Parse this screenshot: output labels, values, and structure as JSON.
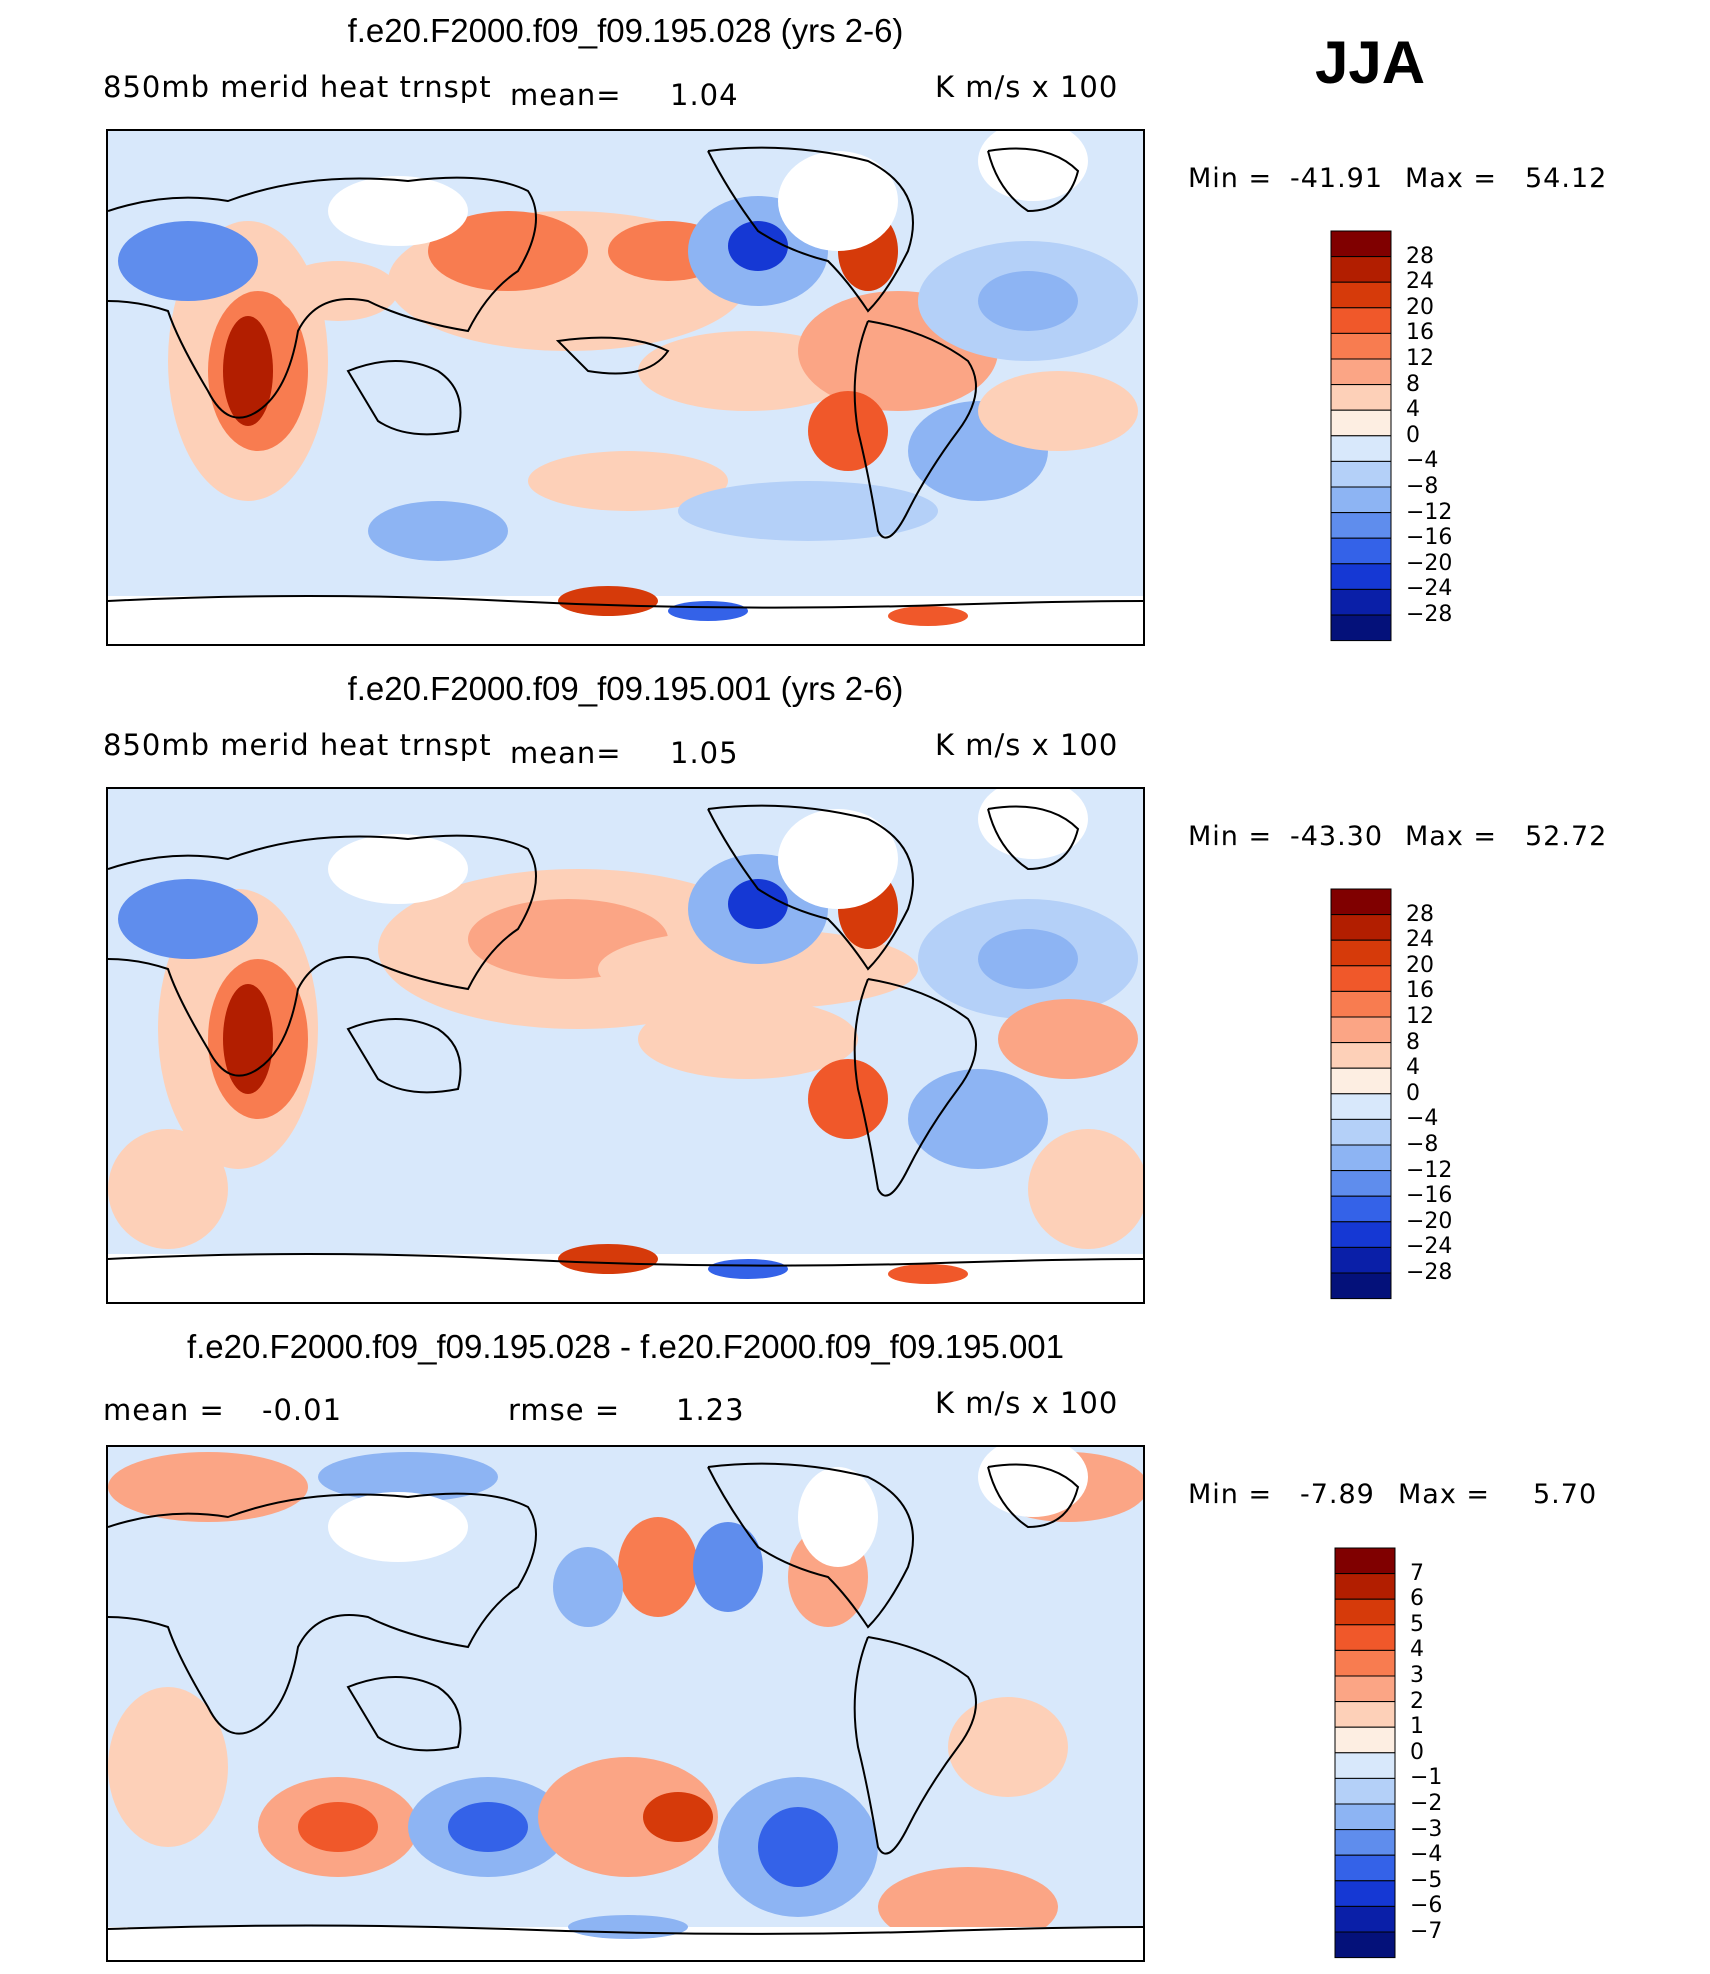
{
  "season": "JJA",
  "panels": [
    {
      "title": "f.e20.F2000.f09_f09.195.028 (yrs 2-6)",
      "variable": "850mb merid heat trnspt",
      "mean_label": "mean=",
      "mean_value": "1.04",
      "units": "K m/s x 100",
      "min_label": "Min =",
      "min_value": "-41.91",
      "max_label": "Max =",
      "max_value": "54.12",
      "levels": [
        "28",
        "24",
        "20",
        "16",
        "12",
        "8",
        "4",
        "0",
        "-4",
        "-8",
        "-12",
        "-16",
        "-20",
        "-24",
        "-28"
      ]
    },
    {
      "title": "f.e20.F2000.f09_f09.195.001 (yrs 2-6)",
      "variable": "850mb merid heat trnspt",
      "mean_label": "mean=",
      "mean_value": "1.05",
      "units": "K m/s x 100",
      "min_label": "Min =",
      "min_value": "-43.30",
      "max_label": "Max =",
      "max_value": "52.72",
      "levels": [
        "28",
        "24",
        "20",
        "16",
        "12",
        "8",
        "4",
        "0",
        "-4",
        "-8",
        "-12",
        "-16",
        "-20",
        "-24",
        "-28"
      ]
    },
    {
      "title": "f.e20.F2000.f09_f09.195.028 - f.e20.F2000.f09_f09.195.001",
      "mean_label": "mean =",
      "mean_value": "-0.01",
      "rmse_label": "rmse =",
      "rmse_value": "1.23",
      "units": "K m/s x 100",
      "min_label": "Min =",
      "min_value": "-7.89",
      "max_label": "Max =",
      "max_value": "5.70",
      "levels": [
        "7",
        "6",
        "5",
        "4",
        "3",
        "2",
        "1",
        "0",
        "-1",
        "-2",
        "-3",
        "-4",
        "-5",
        "-6",
        "-7"
      ]
    }
  ],
  "colorbar_colors": [
    "#800000",
    "#b21e00",
    "#d63a0a",
    "#f0582a",
    "#f87c50",
    "#fba585",
    "#fdd0b8",
    "#fdeee2",
    "#d8e8fb",
    "#b4d0f8",
    "#8db4f3",
    "#5f8ded",
    "#3462e8",
    "#1538d4",
    "#0a1fa8",
    "#04117a"
  ]
}
